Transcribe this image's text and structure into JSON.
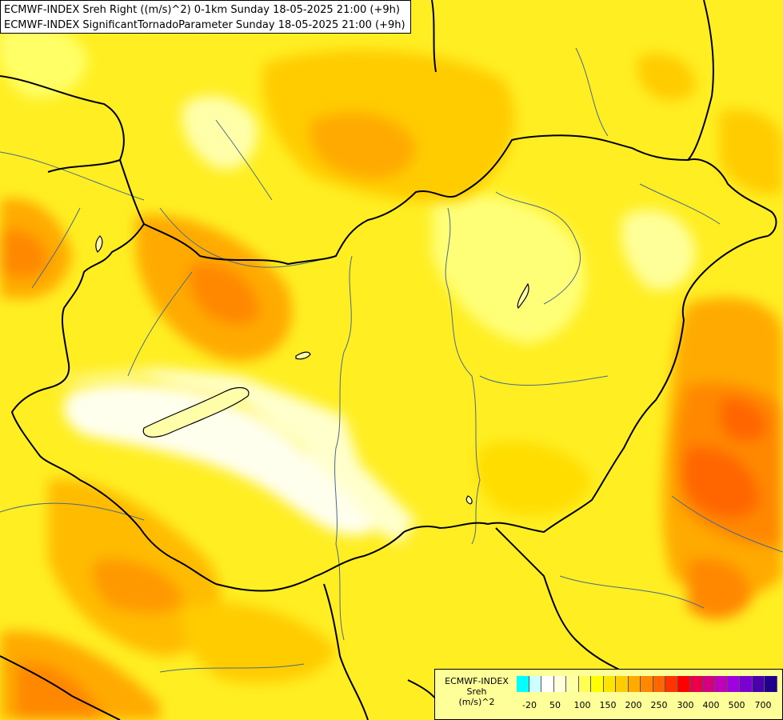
{
  "title": {
    "line1": "ECMWF-INDEX Sreh Right ((m/s)^2) 0-1km Sunday 18-05-2025 21:00 (+9h)",
    "line2": "ECMWF-INDEX SignificantTornadoParameter Sunday 18-05-2025 21:00 (+9h)"
  },
  "legend": {
    "name_line1": "ECMWF-INDEX",
    "name_line2": "Sreh",
    "name_line3": "(m/s)^2",
    "colors": [
      "#00ffff",
      "#ccffff",
      "#ffffff",
      "#ffffdd",
      "#ffffaa",
      "#ffff55",
      "#ffff00",
      "#ffe400",
      "#ffcc00",
      "#ffaa00",
      "#ff8800",
      "#ff6600",
      "#ff3300",
      "#ff0000",
      "#e8004a",
      "#d40080",
      "#c000b8",
      "#a000e0",
      "#7a00d4",
      "#4a00b0",
      "#20008a"
    ],
    "tick_labels": [
      "-20",
      "50",
      "100",
      "150",
      "200",
      "250",
      "300",
      "400",
      "500",
      "700"
    ]
  },
  "field_colors": {
    "background": "#ffff33",
    "light": "#ffffaa",
    "pale": "#ffffdd",
    "yellow": "#ffe600",
    "gold": "#ffcc00",
    "orange": "#ffaa00",
    "dark_orange": "#ff8800",
    "red_orange": "#ff6600",
    "border": "#000000",
    "river": "#4a6a8a"
  }
}
